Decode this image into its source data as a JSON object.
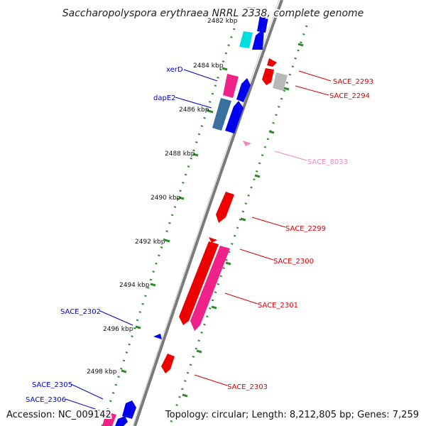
{
  "title": "Saccharopolyspora erythraea NRRL 2338, complete genome",
  "footer": {
    "accession": "Accession: NC_009142",
    "topology": "Topology: circular; Length: 8,212,805 bp; Genes: 7,259"
  },
  "colors": {
    "backbone": "#7a7a7a",
    "tick_dots": "#2e8b2e",
    "label_forward": "#0000cc",
    "label_reverse": "#dd0000",
    "label_pseudo": "#ee88bb",
    "gene_red": "#ee0000",
    "gene_pink": "#ee2288",
    "gene_blue": "#0000ee",
    "gene_cyan": "#00dddd",
    "gene_steel": "#3a70a0",
    "gene_grey": "#b8b8b8"
  },
  "scale_ticks": [
    {
      "label": "2482 kbp"
    },
    {
      "label": "2484 kbp"
    },
    {
      "label": "2486 kbp"
    },
    {
      "label": "2488 kbp"
    },
    {
      "label": "2490 kbp"
    },
    {
      "label": "2492 kbp"
    },
    {
      "label": "2494 kbp"
    },
    {
      "label": "2496 kbp"
    },
    {
      "label": "2498 kbp"
    }
  ],
  "gene_labels": [
    {
      "name": "xerD",
      "strand": "forward"
    },
    {
      "name": "dapE2",
      "strand": "forward"
    },
    {
      "name": "SACE_2302",
      "strand": "forward"
    },
    {
      "name": "SACE_2305",
      "strand": "forward"
    },
    {
      "name": "SACE_2306",
      "strand": "forward"
    },
    {
      "name": "SACE_2293",
      "strand": "reverse"
    },
    {
      "name": "SACE_2294",
      "strand": "reverse"
    },
    {
      "name": "SACE_8033",
      "strand": "pseudo"
    },
    {
      "name": "SACE_2299",
      "strand": "reverse"
    },
    {
      "name": "SACE_2300",
      "strand": "reverse"
    },
    {
      "name": "SACE_2301",
      "strand": "reverse"
    },
    {
      "name": "SACE_2303",
      "strand": "reverse"
    }
  ]
}
